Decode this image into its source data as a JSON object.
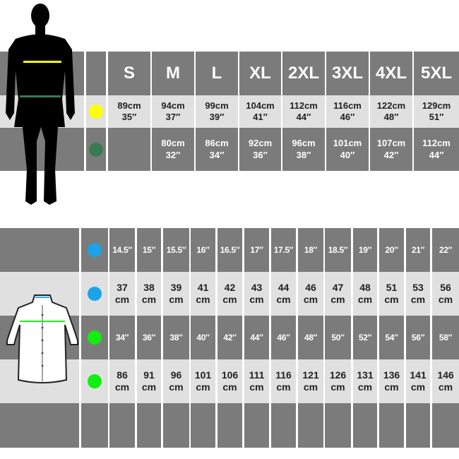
{
  "top_table": {
    "sizes": [
      "S",
      "M",
      "L",
      "XL",
      "2XL",
      "3XL",
      "4XL",
      "5XL"
    ],
    "rows": [
      {
        "marker_color": "#ffff00",
        "values": [
          "89cm\n35″",
          "94cm\n37″",
          "99cm\n39″",
          "104cm\n41″",
          "112cm\n44″",
          "116cm\n46″",
          "122cm\n48″",
          "129cm\n51″"
        ]
      },
      {
        "marker_color": "#3a7a50",
        "values": [
          "",
          "80cm\n32″",
          "86cm\n34″",
          "92cm\n36″",
          "96cm\n38″",
          "101cm\n40″",
          "107cm\n42″",
          "112cm\n44″"
        ]
      }
    ],
    "figure_icon": "man-silhouette",
    "chest_line_color": "#ffff00",
    "waist_line_color": "#3a7a50"
  },
  "bottom_table": {
    "shirt_icon": "shirt-outline",
    "collar_line_color": "#29a8e0",
    "chest_line_color": "#22ee22",
    "rows": [
      {
        "marker_color": "#1aa3e8",
        "values": [
          "14.5″",
          "15″",
          "15.5″",
          "16″",
          "16.5″",
          "17″",
          "17.5″",
          "18″",
          "18.5″",
          "19″",
          "20″",
          "21″",
          "22″"
        ]
      },
      {
        "marker_color": "#1aa3e8",
        "values": [
          "37\ncm",
          "38\ncm",
          "39\ncm",
          "41\ncm",
          "42\ncm",
          "43\ncm",
          "44\ncm",
          "46\ncm",
          "47\ncm",
          "48\ncm",
          "51\ncm",
          "53\ncm",
          "56\ncm"
        ]
      },
      {
        "marker_color": "#11ee11",
        "values": [
          "34″",
          "36″",
          "38″",
          "40″",
          "42″",
          "44″",
          "46″",
          "48″",
          "50″",
          "52″",
          "54″",
          "56″",
          "58″"
        ]
      },
      {
        "marker_color": "#11ee11",
        "values": [
          "86\ncm",
          "91\ncm",
          "96\ncm",
          "101\ncm",
          "106\ncm",
          "111\ncm",
          "116\ncm",
          "121\ncm",
          "126\ncm",
          "131\ncm",
          "136\ncm",
          "141\ncm",
          "146\ncm"
        ]
      }
    ]
  }
}
